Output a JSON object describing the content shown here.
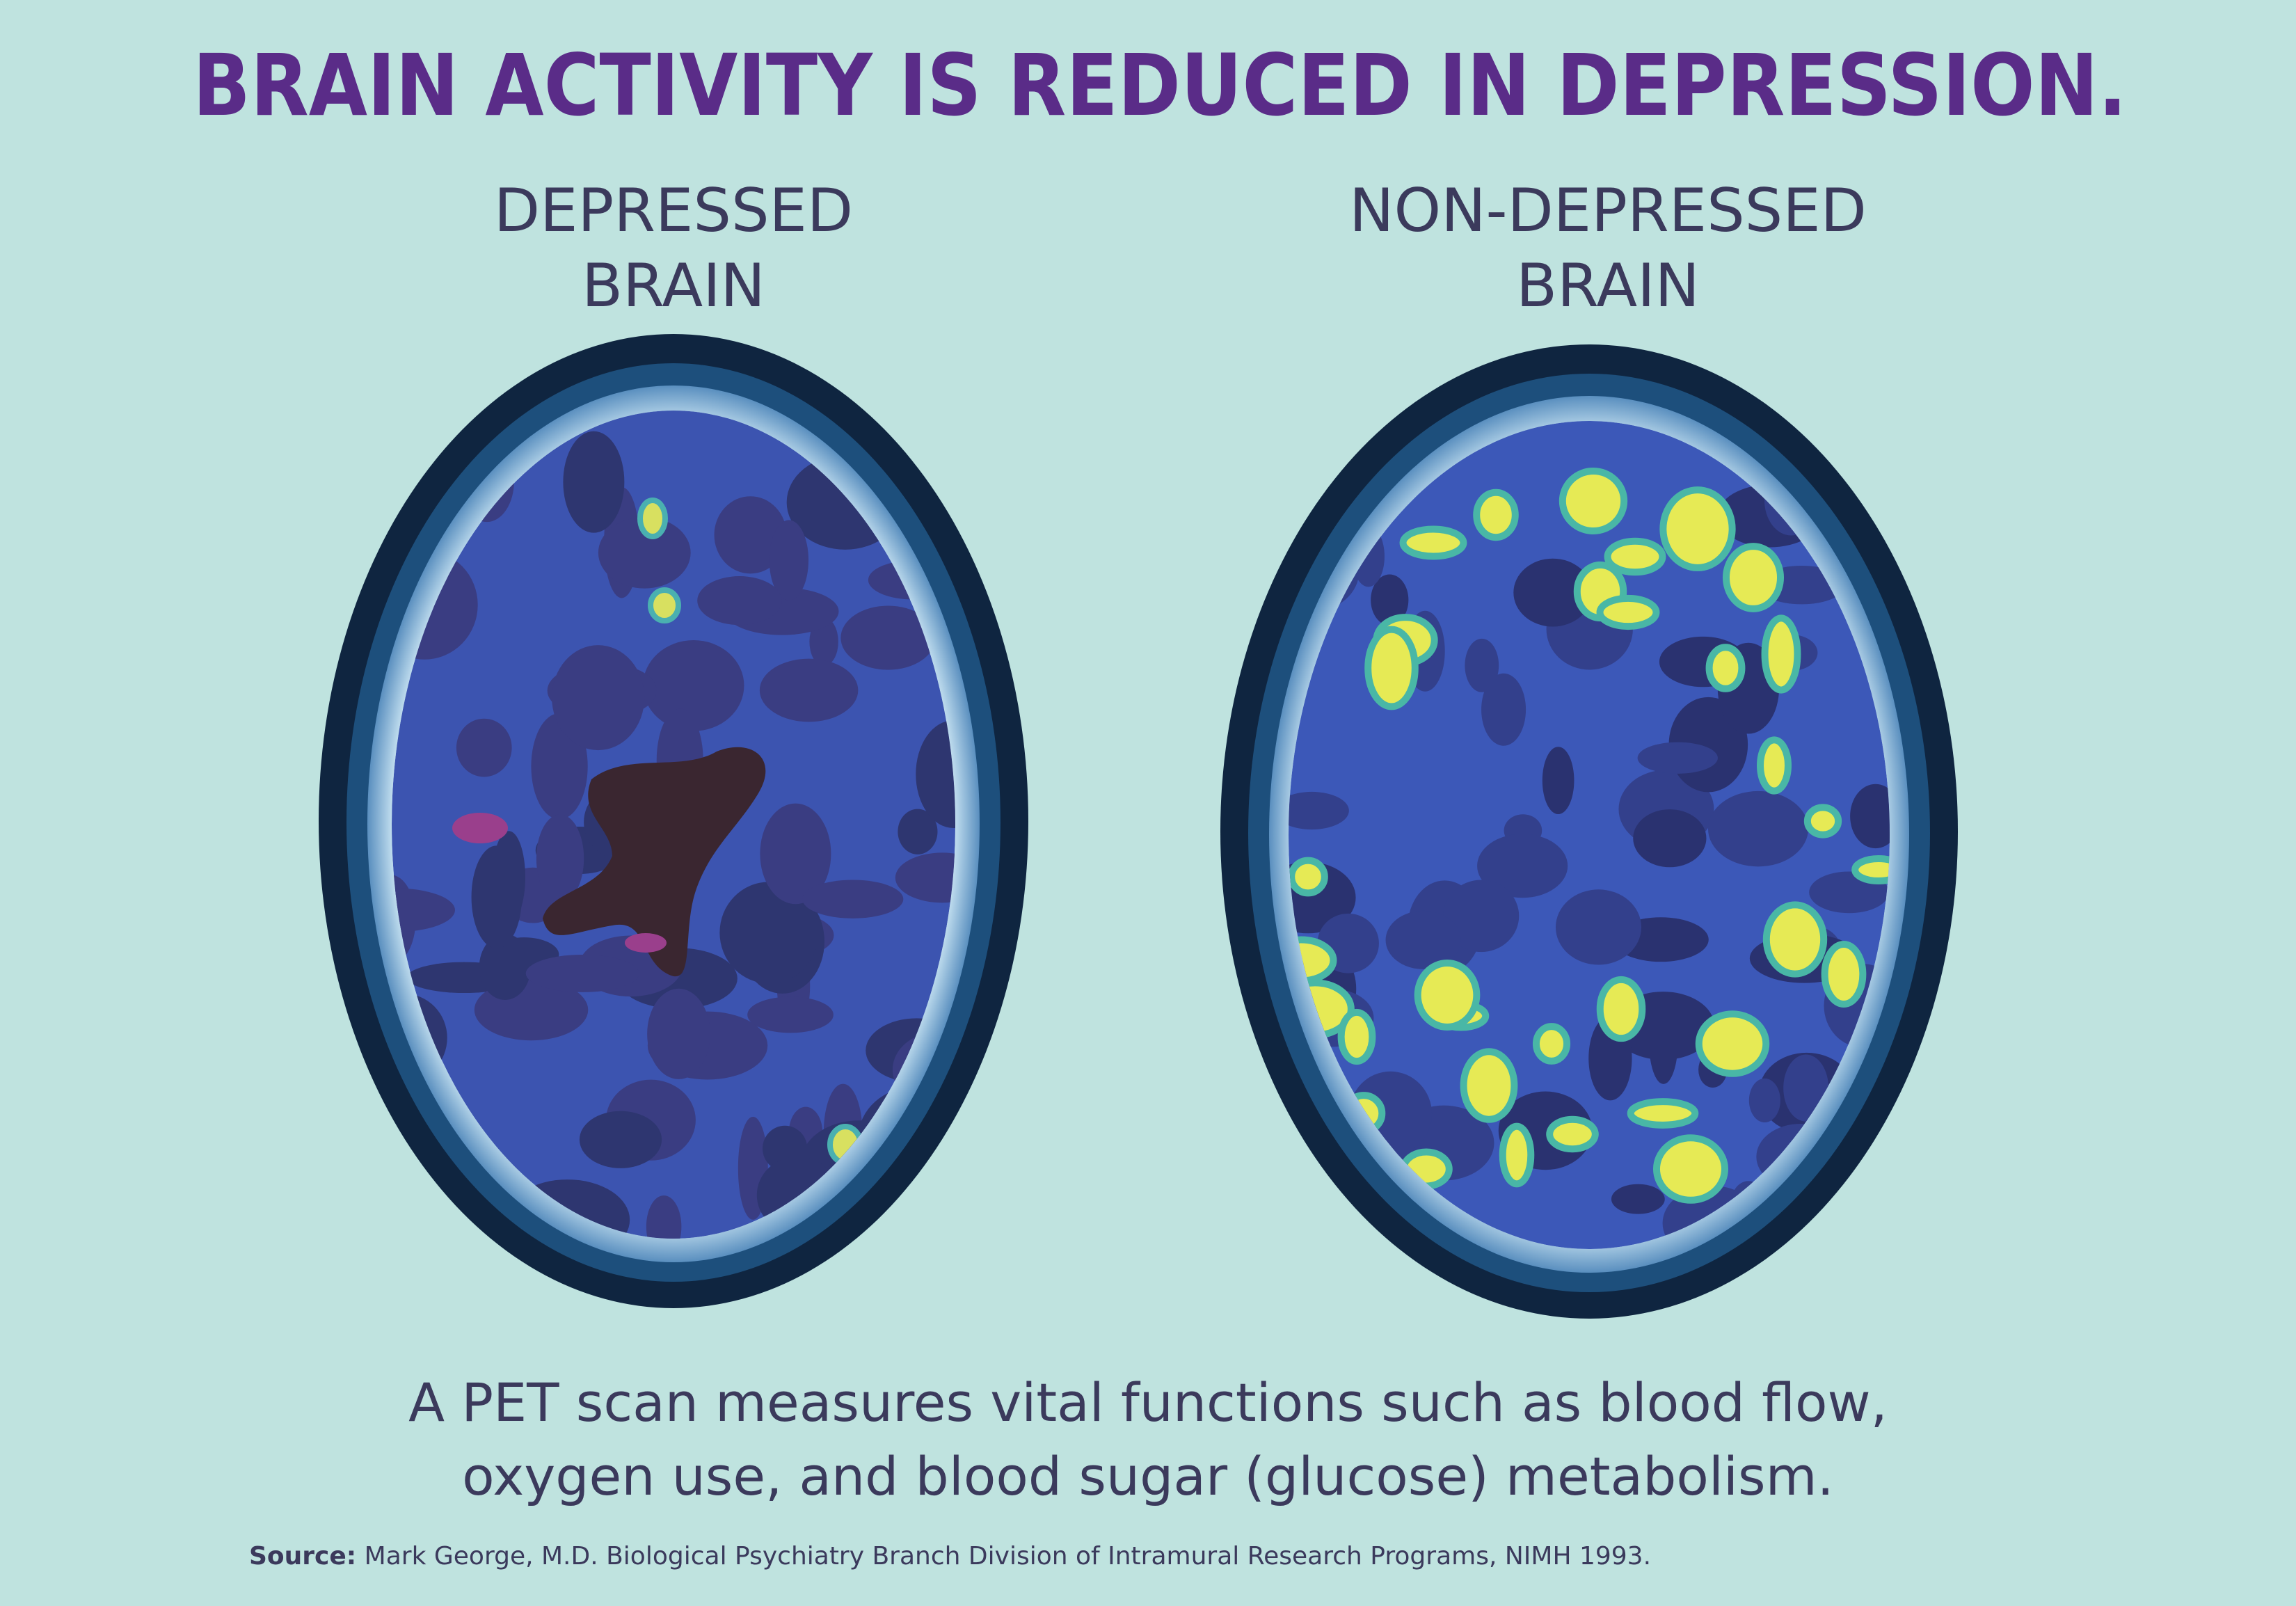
{
  "header": {
    "title": "BRAIN ACTIVITY IS REDUCED IN DEPRESSION."
  },
  "panels": [
    {
      "label_lines": [
        "DEPRESSED",
        "BRAIN"
      ]
    },
    {
      "label_lines": [
        "NON-DEPRESSED",
        "BRAIN"
      ]
    }
  ],
  "caption": {
    "lines": [
      "A PET scan measures vital functions such as blood flow,",
      "oxygen use, and blood sugar (glucose) metabolism."
    ]
  },
  "source": {
    "label": "Source:",
    "text": "Mark George, M.D. Biological Psychiatry Branch Division of Intramural Research Programs, NIMH 1993."
  }
}
